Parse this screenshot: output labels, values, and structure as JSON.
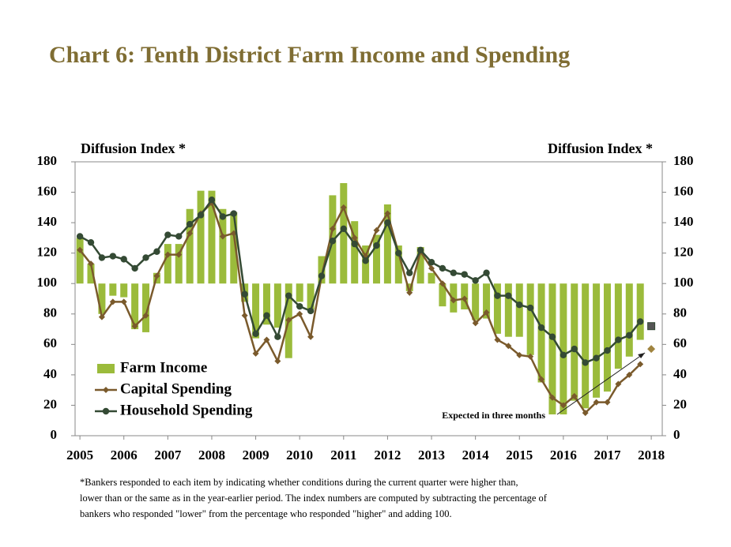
{
  "chart_data": {
    "type": "bar-line",
    "title": "Chart 6: Tenth District Farm Income and Spending",
    "y_label": "Diffusion Index *",
    "y2_label": "Diffusion Index *",
    "footnote": [
      "*Bankers responded to each item by indicating whether conditions during the current quarter were higher than,",
      "lower than or the same as in the year-earlier period.  The index numbers are computed by subtracting the percentage of",
      "bankers who responded \"lower\" from the percentage who responded \"higher\" and adding 100."
    ],
    "x": [
      2005,
      2005.25,
      2005.5,
      2005.75,
      2006,
      2006.25,
      2006.5,
      2006.75,
      2007,
      2007.25,
      2007.5,
      2007.75,
      2008,
      2008.25,
      2008.5,
      2008.75,
      2009,
      2009.25,
      2009.5,
      2009.75,
      2010,
      2010.25,
      2010.5,
      2010.75,
      2011,
      2011.25,
      2011.5,
      2011.75,
      2012,
      2012.25,
      2012.5,
      2012.75,
      2013,
      2013.25,
      2013.5,
      2013.75,
      2014,
      2014.25,
      2014.5,
      2014.75,
      2015,
      2015.25,
      2015.5,
      2015.75,
      2016,
      2016.25,
      2016.5,
      2016.75,
      2017,
      2017.25,
      2017.5,
      2017.75
    ],
    "bar_baseline": 100,
    "series": [
      {
        "name": "Farm Income",
        "kind": "bar",
        "color": "#9bbb3b",
        "values": [
          130,
          113,
          80,
          92,
          91,
          70,
          68,
          107,
          126,
          126,
          149,
          161,
          161,
          149,
          147,
          88,
          64,
          73,
          71,
          51,
          88,
          83,
          118,
          158,
          166,
          141,
          125,
          132,
          152,
          125,
          95,
          124,
          107,
          85,
          81,
          83,
          76,
          77,
          67,
          65,
          65,
          53,
          35,
          14,
          14,
          23,
          18,
          25,
          29,
          44,
          52,
          63
        ]
      },
      {
        "name": "Capital Spending",
        "kind": "line",
        "marker": "diamond",
        "color": "#7a5a2c",
        "values": [
          122,
          113,
          78,
          88,
          88,
          72,
          79,
          105,
          119,
          119,
          133,
          146,
          153,
          131,
          133,
          79,
          54,
          63,
          49,
          76,
          80,
          65,
          105,
          136,
          150,
          130,
          118,
          135,
          146,
          120,
          94,
          121,
          110,
          100,
          89,
          90,
          74,
          81,
          63,
          59,
          53,
          52,
          37,
          25,
          20,
          26,
          15,
          22,
          22,
          34,
          40,
          47
        ],
        "expected": 57
      },
      {
        "name": "Household Spending",
        "kind": "line",
        "marker": "circle",
        "color": "#344a34",
        "values": [
          131,
          127,
          117,
          118,
          116,
          110,
          117,
          121,
          132,
          131,
          139,
          145,
          155,
          144,
          146,
          93,
          67,
          79,
          65,
          92,
          85,
          82,
          105,
          128,
          136,
          126,
          115,
          125,
          140,
          120,
          107,
          122,
          114,
          110,
          107,
          106,
          102,
          107,
          92,
          92,
          86,
          84,
          71,
          65,
          53,
          57,
          48,
          51,
          56,
          63,
          66,
          75
        ],
        "expected": 72
      }
    ],
    "expected_x": 2018,
    "expected_label": "Expected in three months",
    "xlim": [
      2004.89,
      2018.25
    ],
    "xticks": [
      2005,
      2006,
      2007,
      2008,
      2009,
      2010,
      2011,
      2012,
      2013,
      2014,
      2015,
      2016,
      2017,
      2018
    ],
    "ylim": [
      0,
      180
    ],
    "yticks": [
      0,
      20,
      40,
      60,
      80,
      100,
      120,
      140,
      160,
      180
    ],
    "y2lim": [
      0,
      180
    ],
    "y2ticks": [
      0,
      20,
      40,
      60,
      80,
      100,
      120,
      140,
      160,
      180
    ]
  }
}
